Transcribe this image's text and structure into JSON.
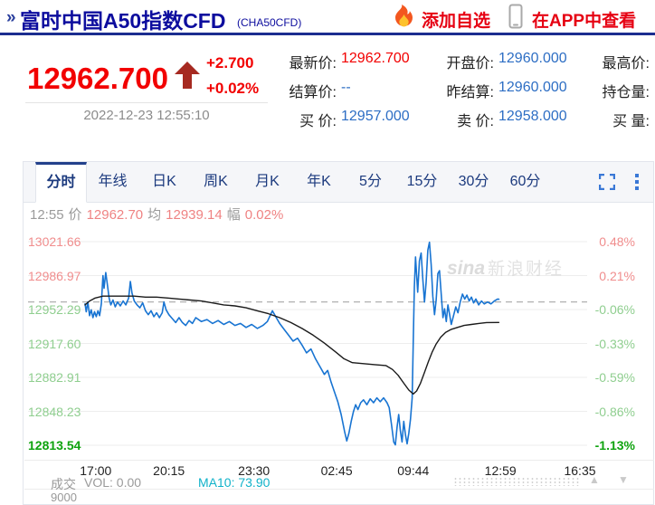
{
  "header": {
    "breadcrumb_icon": "»",
    "title": "富时中国A50指数CFD",
    "symbol": "(CHA50CFD)",
    "add_watchlist": "添加自选",
    "view_in_app": "在APP中查看"
  },
  "quote": {
    "price": "12962.700",
    "change": "+2.700",
    "change_pct": "+0.02%",
    "timestamp": "2022-12-23 12:55:10",
    "fields": [
      {
        "label": "最新价:",
        "value": "12962.700",
        "tone": "red"
      },
      {
        "label": "开盘价:",
        "value": "12960.000",
        "tone": "blue"
      },
      {
        "label": "最高价:",
        "value": "",
        "tone": "blue"
      },
      {
        "label": "结算价:",
        "value": "--",
        "tone": "blue"
      },
      {
        "label": "昨结算:",
        "value": "12960.000",
        "tone": "blue"
      },
      {
        "label": "持仓量:",
        "value": "",
        "tone": "blue"
      },
      {
        "label": "买 价:",
        "value": "12957.000",
        "tone": "blue"
      },
      {
        "label": "卖 价:",
        "value": "12958.000",
        "tone": "blue"
      },
      {
        "label": "买 量:",
        "value": "",
        "tone": "blue"
      }
    ]
  },
  "tabs": {
    "active_index": 0,
    "items": [
      "分时",
      "年线",
      "日K",
      "周K",
      "月K",
      "年K",
      "5分",
      "15分",
      "30分",
      "60分"
    ]
  },
  "chart_info": {
    "parts": [
      {
        "text": "12:55",
        "tone": "gray"
      },
      {
        "text": "价",
        "tone": "gray"
      },
      {
        "text": "12962.70",
        "tone": "salmon"
      },
      {
        "text": "均",
        "tone": "gray"
      },
      {
        "text": "12939.14",
        "tone": "salmon"
      },
      {
        "text": "幅",
        "tone": "gray"
      },
      {
        "text": "0.02%",
        "tone": "salmon"
      }
    ]
  },
  "watermark": {
    "latin": "sina",
    "cn": "新浪财经"
  },
  "footer": {
    "vol_label": "成交",
    "vol": "VOL: 0.00",
    "ma10": "MA10: 73.90",
    "partial_axis_label": "9000"
  },
  "colors": {
    "red": "#f20000",
    "link_red": "#e60012",
    "blue": "#2d6ec4",
    "navy_title": "#0d0d9e",
    "tab_navy": "#1c3a7e",
    "salmon": "#ef8383",
    "green_light": "#8fce8f",
    "green_strong": "#0fa30f",
    "gray": "#999999",
    "cyan": "#10b2c9",
    "line_blue": "#1874d2",
    "line_black": "#1a1a1a",
    "icon_blue": "#3a78d6",
    "arrow_red": "#a62a21",
    "dashed": "#b0b0b0",
    "grid": "#ededed"
  },
  "chart_data": {
    "type": "line",
    "title": "分时 intraday price vs average line",
    "x_ticks": [
      "17:00",
      "20:15",
      "23:30",
      "02:45",
      "09:44",
      "12:59",
      "16:35"
    ],
    "x_tick_pos": [
      0.121,
      0.252,
      0.404,
      0.552,
      0.689,
      0.845,
      0.987
    ],
    "y_ticks": [
      {
        "value": 13021.66,
        "pct": "0.48%",
        "tone": "up"
      },
      {
        "value": 12986.97,
        "pct": "0.21%",
        "tone": "up"
      },
      {
        "value": 12952.29,
        "pct": "-0.06%",
        "tone": "down"
      },
      {
        "value": 12917.6,
        "pct": "-0.33%",
        "tone": "down"
      },
      {
        "value": 12882.91,
        "pct": "-0.59%",
        "tone": "down"
      },
      {
        "value": 12848.23,
        "pct": "-0.86%",
        "tone": "down"
      },
      {
        "value": 12813.54,
        "pct": "-1.13%",
        "tone": "down-strong"
      }
    ],
    "prev_close": 12960.0,
    "y_top": 13021.66,
    "y_bottom": 12813.54,
    "grid": "horizontal gridlines, dashed line at previous settle 12960",
    "legend_position": "none",
    "series": [
      {
        "name": "price",
        "color_key": "line_blue",
        "width": 1.6,
        "points": [
          [
            0.102,
            12958
          ],
          [
            0.104,
            12950
          ],
          [
            0.107,
            12960
          ],
          [
            0.11,
            12946
          ],
          [
            0.113,
            12952
          ],
          [
            0.116,
            12944
          ],
          [
            0.119,
            12950
          ],
          [
            0.122,
            12945
          ],
          [
            0.125,
            12951
          ],
          [
            0.128,
            12946
          ],
          [
            0.131,
            12958
          ],
          [
            0.134,
            12987
          ],
          [
            0.136,
            12974
          ],
          [
            0.139,
            12990
          ],
          [
            0.142,
            12977
          ],
          [
            0.145,
            12964
          ],
          [
            0.148,
            12957
          ],
          [
            0.152,
            12962
          ],
          [
            0.156,
            12955
          ],
          [
            0.16,
            12960
          ],
          [
            0.165,
            12956
          ],
          [
            0.17,
            12961
          ],
          [
            0.175,
            12957
          ],
          [
            0.18,
            12964
          ],
          [
            0.183,
            12981
          ],
          [
            0.186,
            12969
          ],
          [
            0.19,
            12961
          ],
          [
            0.195,
            12957
          ],
          [
            0.2,
            12954
          ],
          [
            0.205,
            12959
          ],
          [
            0.21,
            12951
          ],
          [
            0.215,
            12947
          ],
          [
            0.22,
            12951
          ],
          [
            0.225,
            12945
          ],
          [
            0.23,
            12949
          ],
          [
            0.235,
            12944
          ],
          [
            0.24,
            12949
          ],
          [
            0.243,
            12960
          ],
          [
            0.247,
            12952
          ],
          [
            0.252,
            12947
          ],
          [
            0.258,
            12943
          ],
          [
            0.264,
            12939
          ],
          [
            0.27,
            12944
          ],
          [
            0.276,
            12939
          ],
          [
            0.282,
            12936
          ],
          [
            0.288,
            12941
          ],
          [
            0.294,
            12938
          ],
          [
            0.3,
            12944
          ],
          [
            0.31,
            12940
          ],
          [
            0.32,
            12942
          ],
          [
            0.33,
            12938
          ],
          [
            0.34,
            12941
          ],
          [
            0.35,
            12937
          ],
          [
            0.36,
            12940
          ],
          [
            0.37,
            12936
          ],
          [
            0.38,
            12938
          ],
          [
            0.39,
            12934
          ],
          [
            0.4,
            12937
          ],
          [
            0.41,
            12933
          ],
          [
            0.42,
            12936
          ],
          [
            0.428,
            12940
          ],
          [
            0.437,
            12951
          ],
          [
            0.444,
            12944
          ],
          [
            0.45,
            12938
          ],
          [
            0.458,
            12932
          ],
          [
            0.466,
            12926
          ],
          [
            0.474,
            12920
          ],
          [
            0.482,
            12923
          ],
          [
            0.49,
            12916
          ],
          [
            0.498,
            12908
          ],
          [
            0.506,
            12912
          ],
          [
            0.514,
            12902
          ],
          [
            0.522,
            12894
          ],
          [
            0.53,
            12886
          ],
          [
            0.536,
            12890
          ],
          [
            0.542,
            12878
          ],
          [
            0.548,
            12868
          ],
          [
            0.554,
            12858
          ],
          [
            0.56,
            12845
          ],
          [
            0.566,
            12828
          ],
          [
            0.57,
            12818
          ],
          [
            0.574,
            12826
          ],
          [
            0.578,
            12838
          ],
          [
            0.582,
            12848
          ],
          [
            0.586,
            12855
          ],
          [
            0.59,
            12850
          ],
          [
            0.595,
            12857
          ],
          [
            0.6,
            12860
          ],
          [
            0.606,
            12855
          ],
          [
            0.612,
            12861
          ],
          [
            0.618,
            12857
          ],
          [
            0.624,
            12862
          ],
          [
            0.63,
            12858
          ],
          [
            0.636,
            12862
          ],
          [
            0.642,
            12857
          ],
          [
            0.646,
            12852
          ],
          [
            0.65,
            12835
          ],
          [
            0.654,
            12817
          ],
          [
            0.657,
            12814
          ],
          [
            0.66,
            12832
          ],
          [
            0.663,
            12845
          ],
          [
            0.666,
            12828
          ],
          [
            0.669,
            12817
          ],
          [
            0.672,
            12838
          ],
          [
            0.675,
            12824
          ],
          [
            0.678,
            12815
          ],
          [
            0.681,
            12826
          ],
          [
            0.684,
            12840
          ],
          [
            0.687,
            12862
          ],
          [
            0.689,
            12920
          ],
          [
            0.691,
            12975
          ],
          [
            0.693,
            13006
          ],
          [
            0.695,
            12988
          ],
          [
            0.697,
            12970
          ],
          [
            0.7,
            13002
          ],
          [
            0.703,
            13010
          ],
          [
            0.706,
            12984
          ],
          [
            0.709,
            12960
          ],
          [
            0.712,
            12980
          ],
          [
            0.715,
            13013
          ],
          [
            0.718,
            13021
          ],
          [
            0.721,
            12998
          ],
          [
            0.724,
            12966
          ],
          [
            0.727,
            12947
          ],
          [
            0.73,
            12962
          ],
          [
            0.733,
            12989
          ],
          [
            0.736,
            12992
          ],
          [
            0.739,
            12968
          ],
          [
            0.742,
            12944
          ],
          [
            0.745,
            12953
          ],
          [
            0.748,
            12940
          ],
          [
            0.751,
            12957
          ],
          [
            0.754,
            12947
          ],
          [
            0.757,
            12937
          ],
          [
            0.761,
            12946
          ],
          [
            0.765,
            12955
          ],
          [
            0.769,
            12949
          ],
          [
            0.773,
            12960
          ],
          [
            0.777,
            12968
          ],
          [
            0.781,
            12963
          ],
          [
            0.785,
            12967
          ],
          [
            0.789,
            12961
          ],
          [
            0.793,
            12965
          ],
          [
            0.797,
            12959
          ],
          [
            0.801,
            12963
          ],
          [
            0.806,
            12957
          ],
          [
            0.811,
            12961
          ],
          [
            0.816,
            12958
          ],
          [
            0.822,
            12960
          ],
          [
            0.828,
            12958
          ],
          [
            0.834,
            12961
          ],
          [
            0.84,
            12963
          ],
          [
            0.842,
            12962.7
          ]
        ]
      },
      {
        "name": "average",
        "color_key": "line_black",
        "width": 1.4,
        "points": [
          [
            0.102,
            12957
          ],
          [
            0.11,
            12961
          ],
          [
            0.12,
            12964
          ],
          [
            0.134,
            12966
          ],
          [
            0.15,
            12966
          ],
          [
            0.17,
            12966
          ],
          [
            0.19,
            12966
          ],
          [
            0.21,
            12965
          ],
          [
            0.23,
            12965
          ],
          [
            0.25,
            12964
          ],
          [
            0.27,
            12963
          ],
          [
            0.29,
            12962
          ],
          [
            0.31,
            12961
          ],
          [
            0.33,
            12959
          ],
          [
            0.35,
            12957
          ],
          [
            0.37,
            12956
          ],
          [
            0.39,
            12954
          ],
          [
            0.41,
            12951
          ],
          [
            0.43,
            12948
          ],
          [
            0.45,
            12944
          ],
          [
            0.47,
            12939
          ],
          [
            0.49,
            12933
          ],
          [
            0.51,
            12926
          ],
          [
            0.53,
            12918
          ],
          [
            0.55,
            12909
          ],
          [
            0.565,
            12902
          ],
          [
            0.58,
            12898
          ],
          [
            0.6,
            12897
          ],
          [
            0.62,
            12896
          ],
          [
            0.64,
            12895
          ],
          [
            0.652,
            12891
          ],
          [
            0.662,
            12885
          ],
          [
            0.672,
            12877
          ],
          [
            0.681,
            12870
          ],
          [
            0.689,
            12866
          ],
          [
            0.695,
            12869
          ],
          [
            0.702,
            12877
          ],
          [
            0.709,
            12888
          ],
          [
            0.716,
            12899
          ],
          [
            0.723,
            12909
          ],
          [
            0.73,
            12917
          ],
          [
            0.738,
            12924
          ],
          [
            0.747,
            12929
          ],
          [
            0.757,
            12932
          ],
          [
            0.768,
            12934
          ],
          [
            0.78,
            12936
          ],
          [
            0.793,
            12937
          ],
          [
            0.806,
            12938
          ],
          [
            0.82,
            12939
          ],
          [
            0.842,
            12939.1
          ]
        ]
      }
    ]
  }
}
